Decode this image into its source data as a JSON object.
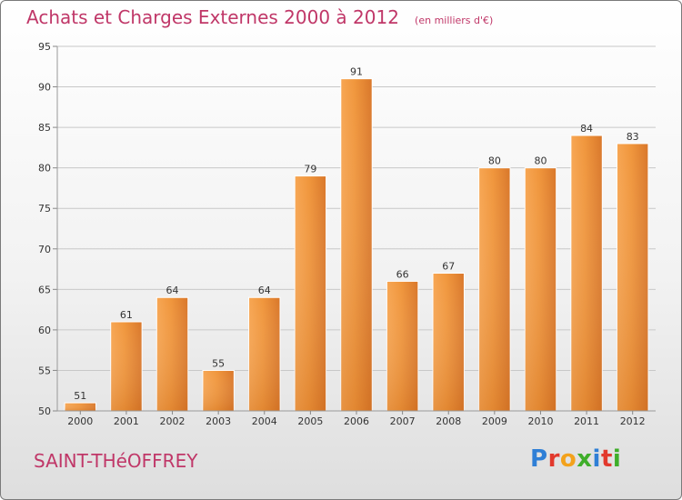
{
  "chart_data": {
    "type": "bar",
    "title": "Achats et Charges Externes 2000 à 2012",
    "subtitle": "(en milliers d'€)",
    "categories": [
      "2000",
      "2001",
      "2002",
      "2003",
      "2004",
      "2005",
      "2006",
      "2007",
      "2008",
      "2009",
      "2010",
      "2011",
      "2012"
    ],
    "values": [
      51,
      61,
      64,
      55,
      64,
      79,
      91,
      66,
      67,
      80,
      80,
      84,
      83
    ],
    "ylim": [
      50,
      95
    ],
    "yticks": [
      50,
      55,
      60,
      65,
      70,
      75,
      80,
      85,
      90,
      95
    ],
    "grid": true,
    "bar_color": "#f0963c",
    "bar_color_light": "#f7a653",
    "bar_color_dark": "#d9772a",
    "grid_color": "#c8c8c8"
  },
  "commune": "SAINT-THéOFFREY",
  "logo": {
    "letters": [
      {
        "ch": "P",
        "color": "#2f7fd6"
      },
      {
        "ch": "r",
        "color": "#e2392d"
      },
      {
        "ch": "o",
        "color": "#f3a21c"
      },
      {
        "ch": "x",
        "color": "#3fae2a"
      },
      {
        "ch": "i",
        "color": "#2f7fd6"
      },
      {
        "ch": "t",
        "color": "#e2392d"
      },
      {
        "ch": "i",
        "color": "#3fae2a"
      }
    ]
  },
  "colors": {
    "accent": "#c03768"
  }
}
